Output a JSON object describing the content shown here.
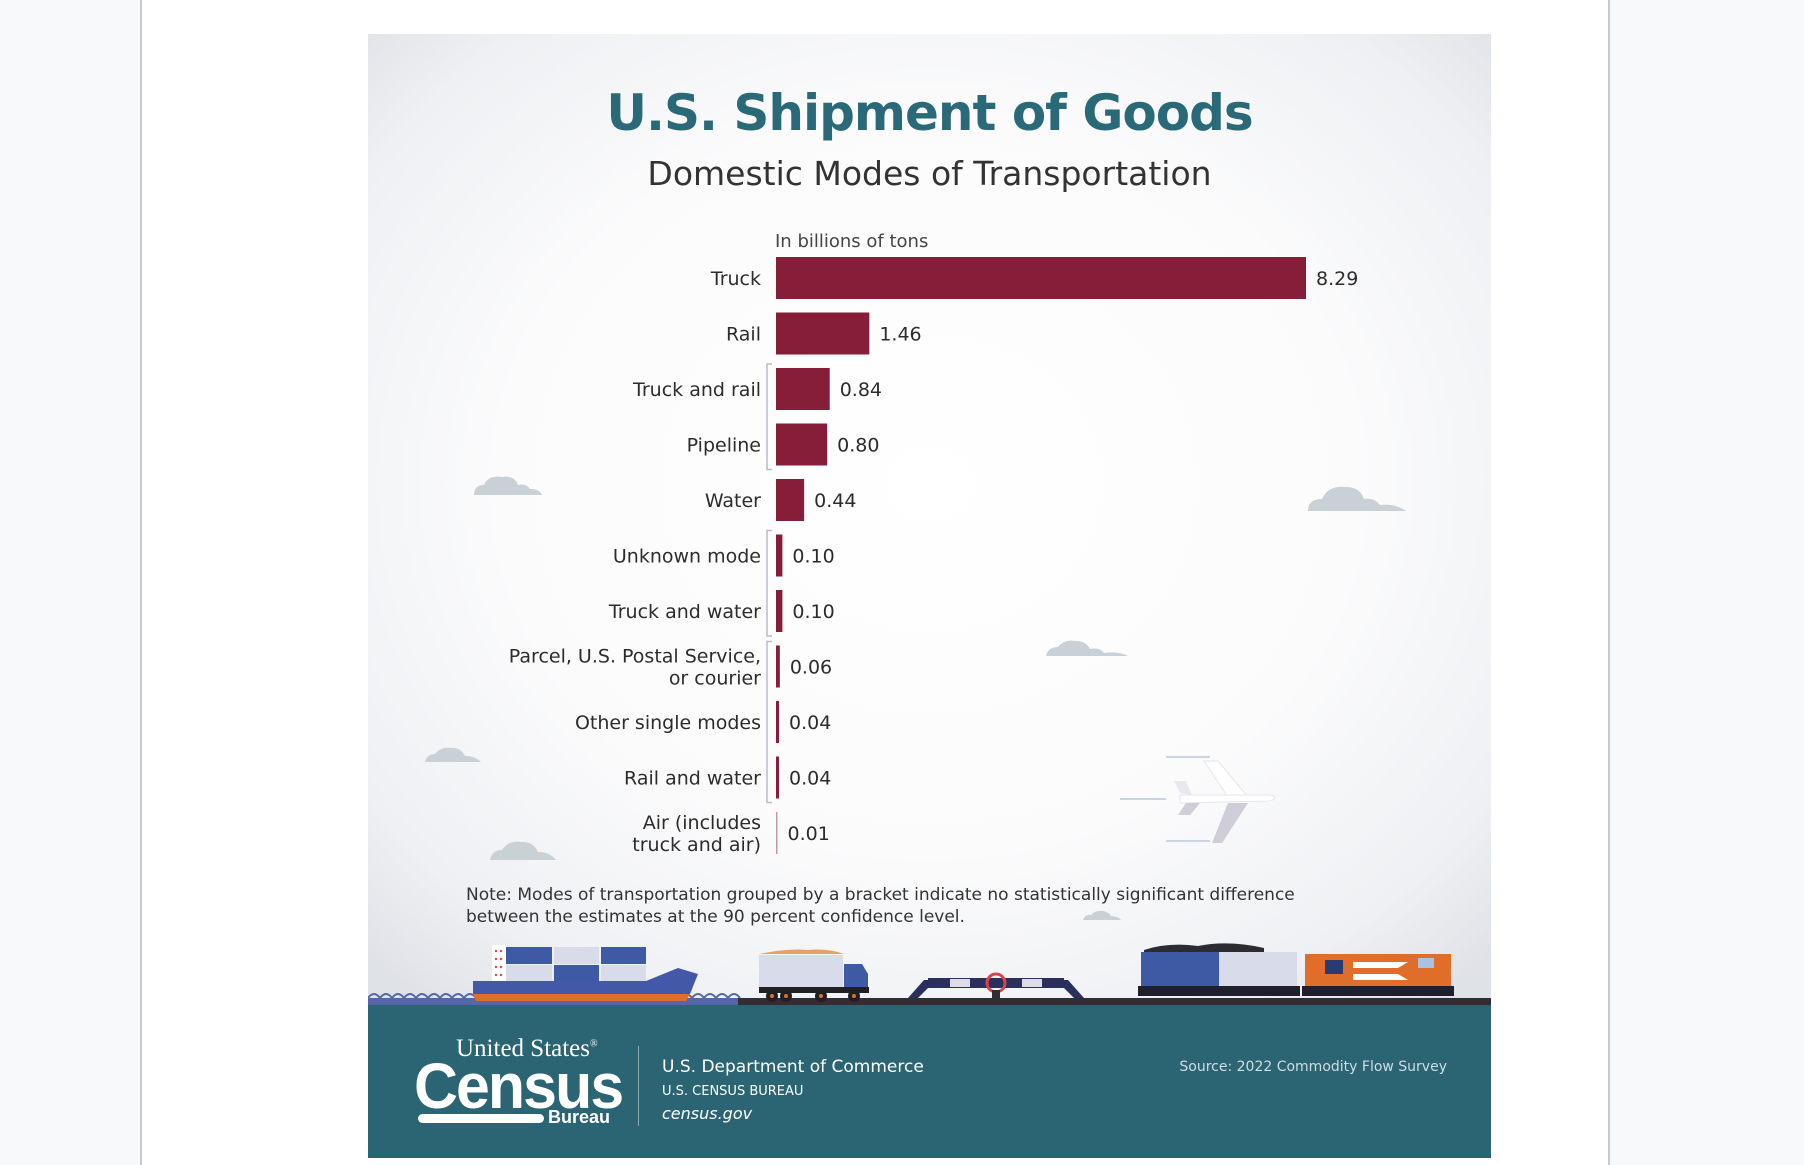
{
  "infographic": {
    "title": "U.S. Shipment of Goods",
    "subtitle": "Domestic Modes of Transportation",
    "note": "Note: Modes of transportation grouped by a bracket indicate no statistically significant difference between the estimates at the 90 percent confidence level.",
    "colors": {
      "bar": "#861d39",
      "title": "#2a6a78",
      "footer": "#2b6573"
    }
  },
  "chart_data": {
    "type": "bar",
    "orientation": "horizontal",
    "title": "U.S. Shipment of Goods",
    "subtitle": "Domestic Modes of Transportation",
    "xlabel": "In billions of tons",
    "ylabel": "",
    "categories": [
      [
        "Truck"
      ],
      [
        "Rail"
      ],
      [
        "Truck and rail"
      ],
      [
        "Pipeline"
      ],
      [
        "Water"
      ],
      [
        "Unknown mode"
      ],
      [
        "Truck and water"
      ],
      [
        "Parcel, U.S. Postal Service,",
        "or courier"
      ],
      [
        "Other single modes"
      ],
      [
        "Rail and water"
      ],
      [
        "Air (includes",
        "truck and air)"
      ]
    ],
    "values": [
      8.29,
      1.46,
      0.84,
      0.8,
      0.44,
      0.1,
      0.1,
      0.06,
      0.04,
      0.04,
      0.01
    ],
    "value_labels": [
      "8.29",
      "1.46",
      "0.84",
      "0.80",
      "0.44",
      "0.10",
      "0.10",
      "0.06",
      "0.04",
      "0.04",
      "0.01"
    ],
    "brackets": [
      [
        2,
        3
      ],
      [
        5,
        6
      ],
      [
        7,
        9
      ]
    ],
    "xlim": [
      0,
      8.29
    ],
    "grid": false,
    "legend": "none"
  },
  "footer": {
    "logo_top": "United States",
    "logo_registered": "®",
    "logo_main": "Census",
    "logo_bottom": "Bureau",
    "department": "U.S. Department of Commerce",
    "bureau": "U.S. CENSUS BUREAU",
    "website": "census.gov",
    "source": "Source: 2022 Commodity Flow Survey"
  }
}
